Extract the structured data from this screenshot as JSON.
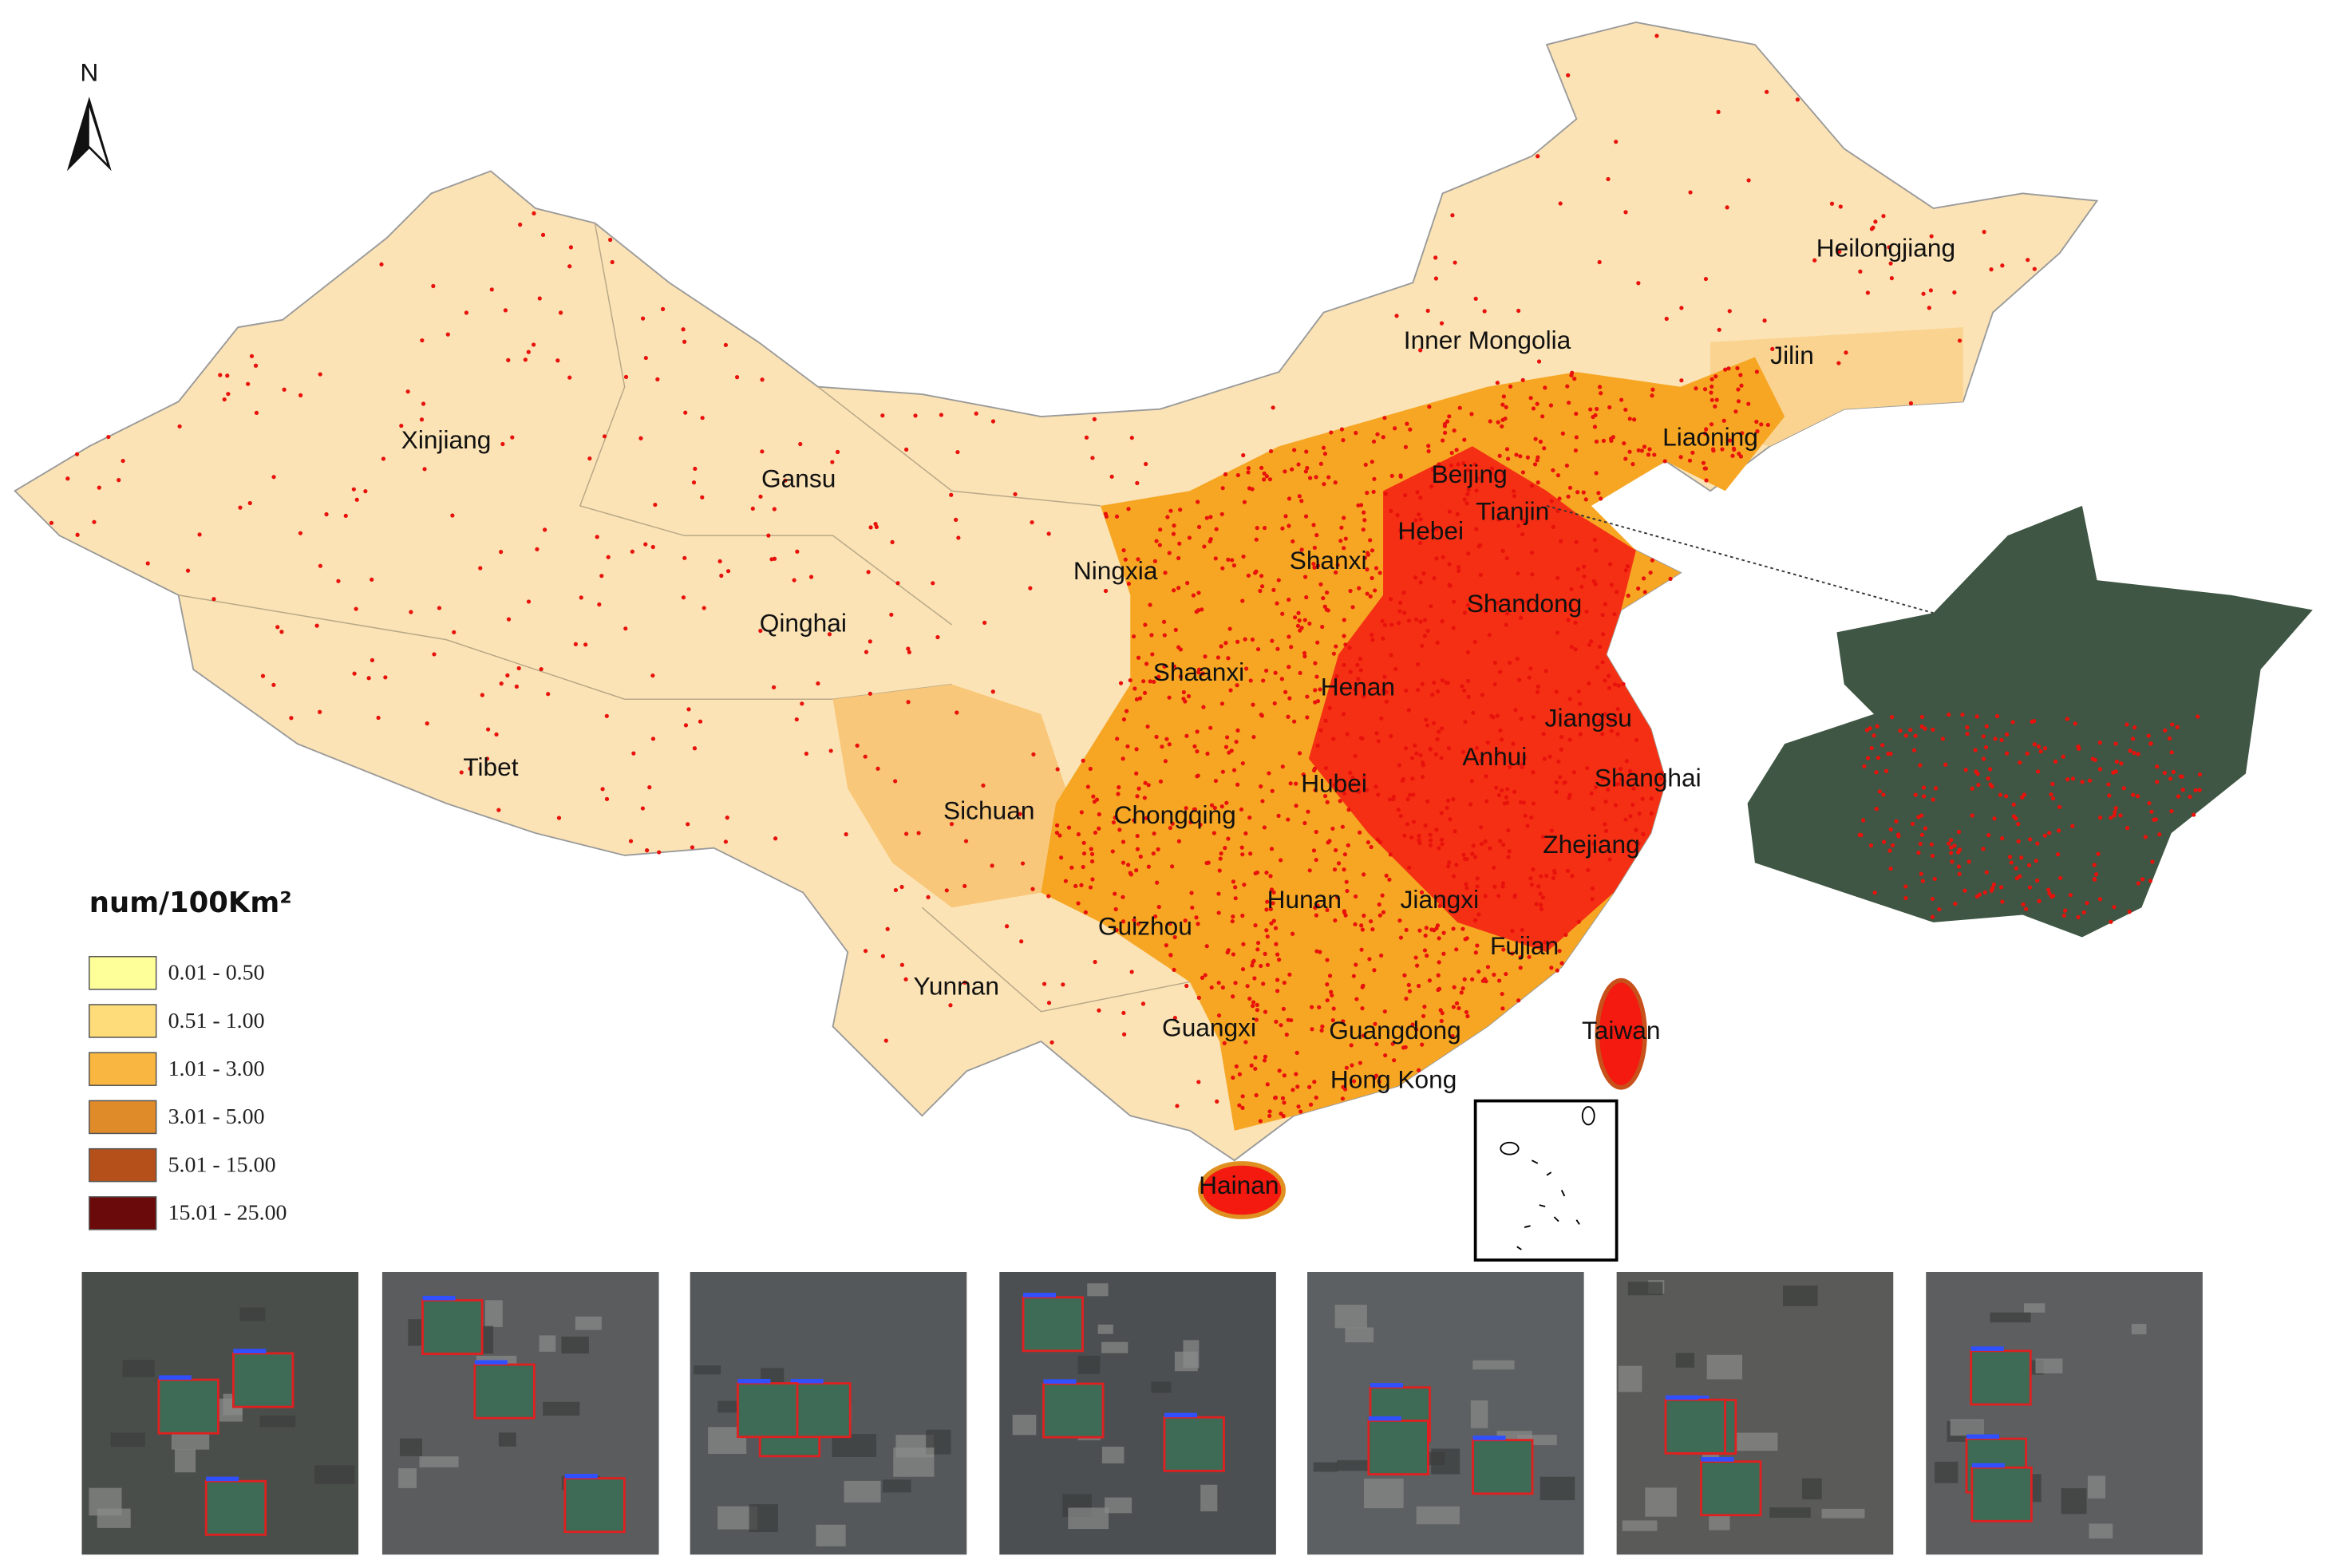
{
  "north_label": "N",
  "legend": {
    "title": "num/100Km²",
    "items": [
      "0.01 - 0.50",
      "0.51 - 1.00",
      "1.01 - 3.00",
      "3.01 - 5.00",
      "5.01 - 15.00",
      "15.01 - 25.00"
    ]
  },
  "labels": [
    "Heilongjiang",
    "Inner Mongolia",
    "Jilin",
    "Liaoning",
    "Xinjiang",
    "Gansu",
    "Beijing",
    "Tianjin",
    "Hebei",
    "Ningxia",
    "Shanxi",
    "Qinghai",
    "Shandong",
    "Shaanxi",
    "Henan",
    "Jiangsu",
    "Tibet",
    "Anhui",
    "Shanghai",
    "Hubei",
    "Sichuan",
    "Chongqing",
    "Zhejiang",
    "Hunan",
    "Jiangxi",
    "Guizhou",
    "Fujian",
    "Yunnan",
    "Guangxi",
    "Guangdong",
    "Taiwan",
    "Hong Kong",
    "Hainan"
  ]
}
